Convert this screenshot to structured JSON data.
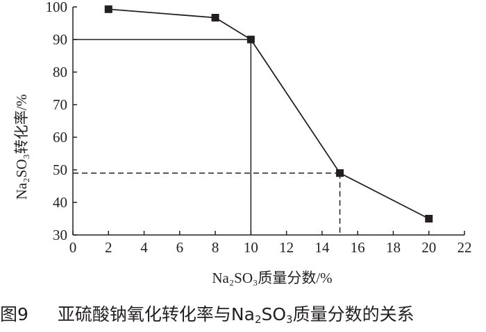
{
  "chart_data": {
    "type": "line",
    "x": [
      2,
      8,
      10,
      15,
      20
    ],
    "values": [
      99.3,
      96.7,
      90,
      49,
      35
    ],
    "xlim": [
      0,
      22
    ],
    "ylim": [
      30,
      100
    ],
    "xticks": [
      0,
      2,
      4,
      6,
      8,
      10,
      12,
      14,
      16,
      18,
      20,
      22
    ],
    "yticks": [
      30,
      40,
      50,
      60,
      70,
      80,
      90,
      100
    ],
    "xlabel": "Na₂SO₃质量分数/%",
    "ylabel": "Na₂SO₃转化率/%",
    "grid": false,
    "marker": "square",
    "reference_lines": [
      {
        "style": "solid",
        "x": 10,
        "y": 90
      },
      {
        "style": "dashed",
        "x": 15,
        "y": 49
      }
    ]
  },
  "caption": {
    "figure_label": "图9",
    "text_before_formula": "亚硫酸钠氧化转化率与Na",
    "sub_2": "2",
    "text_mid": "SO",
    "sub_3": "3",
    "text_after_formula": "质量分数的关系"
  },
  "colors": {
    "ink": "#231f20",
    "marker": "#231f20",
    "background": "#ffffff"
  }
}
